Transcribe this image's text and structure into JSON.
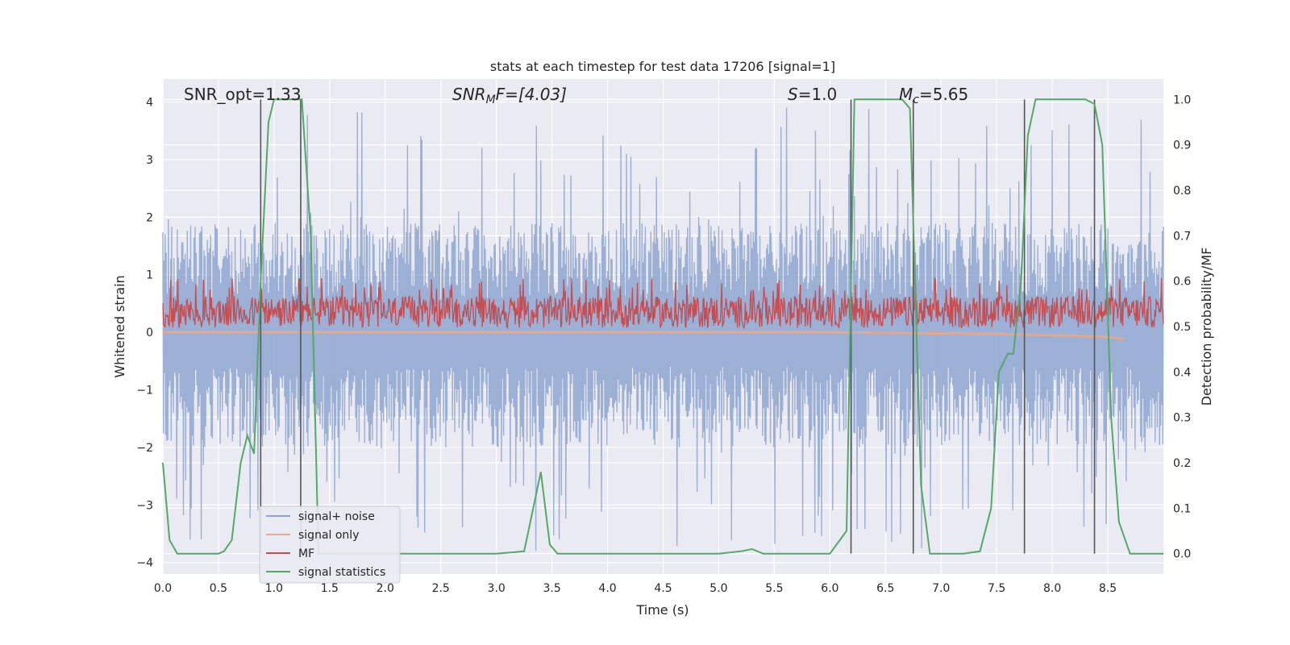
{
  "chart_data": {
    "type": "line",
    "title": "stats at each timestep for test data 17206 [signal=1]",
    "xlabel": "Time (s)",
    "ylabel_left": "Whitened strain",
    "ylabel_right": "Detection probability/MF",
    "xlim": [
      0.0,
      9.0
    ],
    "ylim_left": [
      -4.2,
      4.4
    ],
    "ylim_right": [
      -0.045,
      1.045
    ],
    "x_ticks": [
      "0.0",
      "0.5",
      "1.0",
      "1.5",
      "2.0",
      "2.5",
      "3.0",
      "3.5",
      "4.0",
      "4.5",
      "5.0",
      "5.5",
      "6.0",
      "6.5",
      "7.0",
      "7.5",
      "8.0",
      "8.5"
    ],
    "y_ticks_left": [
      "4",
      "3",
      "2",
      "1",
      "0",
      "−1",
      "−2",
      "−3",
      "−4"
    ],
    "y_ticks_right": [
      "1.0",
      "0.9",
      "0.8",
      "0.7",
      "0.6",
      "0.5",
      "0.4",
      "0.3",
      "0.2",
      "0.1",
      "0.0"
    ],
    "grid": true,
    "legend_position": "lower-left",
    "annotations": {
      "snr_opt": "SNR_opt=1.33",
      "snr_mf_label": "SNR",
      "snr_mf_sub": "M",
      "snr_mf_value": "F=[4.03]",
      "s_label": "S",
      "s_value": "=1.0",
      "mc_label": "M",
      "mc_sub": "c",
      "mc_value": "=5.65"
    },
    "series": [
      {
        "name": "signal+ noise",
        "color": "#8ea4cf",
        "axis": "left",
        "envelope": {
          "upper_typical": 1.9,
          "lower_typical": -2.0,
          "upper_peak": 4.0,
          "lower_peak": -3.8
        }
      },
      {
        "name": "signal only",
        "color": "#e9a889",
        "axis": "left",
        "x": [
          0.0,
          5.5,
          6.0,
          6.5,
          7.0,
          7.5,
          8.0,
          8.5,
          8.65
        ],
        "y": [
          0.0,
          0.0,
          0.0,
          -0.01,
          -0.02,
          -0.03,
          -0.05,
          -0.08,
          -0.12
        ]
      },
      {
        "name": "MF",
        "color": "#c44e52",
        "axis": "left",
        "band": {
          "mean": 0.35,
          "low": 0.0,
          "high": 0.95
        }
      },
      {
        "name": "signal statistics",
        "color": "#55a868",
        "axis": "right",
        "x": [
          0.0,
          0.06,
          0.13,
          0.25,
          0.5,
          0.55,
          0.62,
          0.7,
          0.76,
          0.82,
          0.88,
          0.95,
          1.0,
          1.1,
          1.25,
          1.33,
          1.4,
          1.6,
          2.0,
          2.5,
          3.0,
          3.25,
          3.4,
          3.48,
          3.55,
          4.0,
          4.5,
          5.0,
          5.2,
          5.3,
          5.4,
          6.0,
          6.15,
          6.22,
          6.3,
          6.5,
          6.65,
          6.72,
          6.82,
          6.9,
          7.0,
          7.2,
          7.35,
          7.45,
          7.52,
          7.6,
          7.65,
          7.72,
          7.78,
          7.85,
          7.9,
          8.0,
          8.3,
          8.38,
          8.45,
          8.53,
          8.6,
          8.7,
          9.0
        ],
        "y": [
          0.2,
          0.03,
          0.0,
          0.0,
          0.0,
          0.005,
          0.03,
          0.2,
          0.26,
          0.22,
          0.6,
          0.95,
          1.0,
          1.0,
          1.0,
          0.7,
          0.0,
          0.0,
          0.0,
          0.0,
          0.0,
          0.005,
          0.18,
          0.02,
          0.0,
          0.0,
          0.0,
          0.0,
          0.005,
          0.01,
          0.0,
          0.0,
          0.05,
          1.0,
          1.0,
          1.0,
          1.0,
          0.98,
          0.15,
          0.0,
          0.0,
          0.0,
          0.005,
          0.1,
          0.4,
          0.44,
          0.44,
          0.6,
          0.92,
          1.0,
          1.0,
          1.0,
          1.0,
          0.99,
          0.9,
          0.3,
          0.07,
          0.0,
          0.0
        ]
      }
    ],
    "vertical_markers": [
      0.88,
      1.24,
      6.19,
      6.75,
      7.75,
      8.38
    ]
  }
}
